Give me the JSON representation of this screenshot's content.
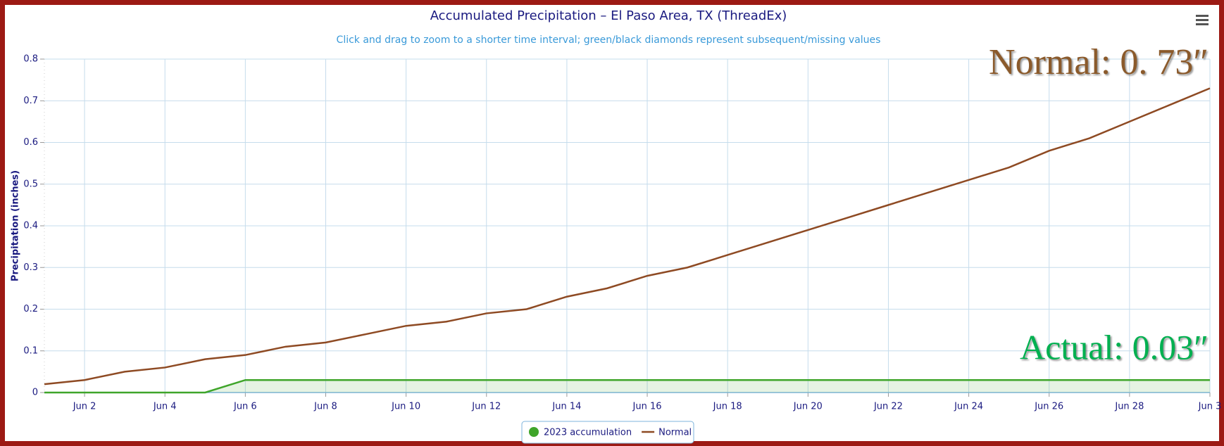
{
  "chart_data": {
    "type": "line",
    "title": "Accumulated Precipitation – El Paso Area, TX (ThreadEx)",
    "subtitle": "Click and drag to zoom to a shorter time interval; green/black diamonds represent subsequent/missing values",
    "y_axis_label": "Precipitation (inches)",
    "categories": [
      null,
      "Jun 2",
      null,
      "Jun 4",
      null,
      "Jun 6",
      null,
      "Jun 8",
      null,
      "Jun 10",
      null,
      "Jun 12",
      null,
      "Jun 14",
      null,
      "Jun 16",
      null,
      "Jun 18",
      null,
      "Jun 20",
      null,
      "Jun 22",
      null,
      "Jun 24",
      null,
      "Jun 26",
      null,
      "Jun 28",
      null,
      "Jun 3"
    ],
    "series": [
      {
        "name": "2023 accumulation",
        "color": "#3fa52a",
        "area": true,
        "values": [
          0,
          0,
          0,
          0,
          0,
          0.03,
          0.03,
          0.03,
          0.03,
          0.03,
          0.03,
          0.03,
          0.03,
          0.03,
          0.03,
          0.03,
          0.03,
          0.03,
          0.03,
          0.03,
          0.03,
          0.03,
          0.03,
          0.03,
          0.03,
          0.03,
          0.03,
          0.03,
          0.03,
          0.03
        ]
      },
      {
        "name": "Normal",
        "color": "#8e4a23",
        "values": [
          0.02,
          0.03,
          0.05,
          0.06,
          0.08,
          0.09,
          0.11,
          0.12,
          0.14,
          0.16,
          0.17,
          0.19,
          0.2,
          0.23,
          0.25,
          0.28,
          0.3,
          0.33,
          0.36,
          0.39,
          0.42,
          0.45,
          0.48,
          0.51,
          0.54,
          0.58,
          0.61,
          0.65,
          0.69,
          0.73
        ]
      }
    ],
    "ylim": [
      0,
      0.8
    ],
    "yticks": [
      0,
      0.1,
      0.2,
      0.3,
      0.4,
      0.5,
      0.6,
      0.7,
      0.8
    ],
    "grid": true,
    "legend": "bottom",
    "annotations": [
      {
        "text": "Normal: 0. 73″",
        "color": "#8b5a2b"
      },
      {
        "text": "Actual: 0.03″",
        "color": "#00b050"
      }
    ]
  }
}
